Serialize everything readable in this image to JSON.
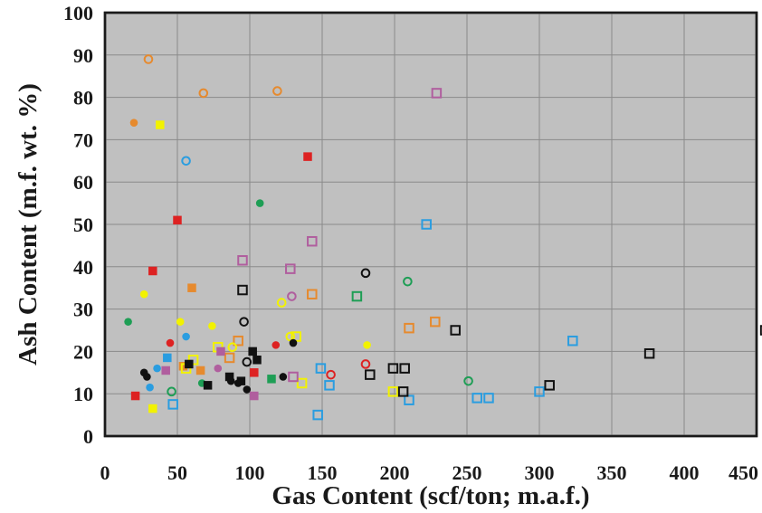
{
  "chart_data": {
    "type": "scatter",
    "title": "",
    "xlabel": "Gas Content (scf/ton; m.a.f.)",
    "ylabel": "Ash Content (m.f. wt. %)",
    "xlim": [
      0,
      450
    ],
    "ylim": [
      0,
      100
    ],
    "xticks": [
      0,
      50,
      100,
      150,
      200,
      250,
      300,
      350,
      400,
      450
    ],
    "yticks": [
      0,
      10,
      20,
      30,
      40,
      50,
      60,
      70,
      80,
      90,
      100
    ],
    "grid": true,
    "plot_background": "#c0c0c0",
    "legend": "none",
    "series": [
      {
        "color": "#e68a2e",
        "marker": "circle-open",
        "points": [
          [
            30,
            89
          ],
          [
            68,
            81
          ],
          [
            119,
            81.5
          ]
        ]
      },
      {
        "color": "#e68a2e",
        "marker": "circle-filled",
        "points": [
          [
            20,
            74
          ]
        ]
      },
      {
        "color": "#e68a2e",
        "marker": "square-open",
        "points": [
          [
            143,
            33.5
          ],
          [
            210,
            25.5
          ],
          [
            228,
            27
          ],
          [
            92,
            22.5
          ],
          [
            86,
            18.5
          ]
        ]
      },
      {
        "color": "#e68a2e",
        "marker": "square-filled",
        "points": [
          [
            60,
            35
          ],
          [
            54,
            16.5
          ],
          [
            66,
            15.5
          ]
        ]
      },
      {
        "color": "#f2f200",
        "marker": "square-filled",
        "points": [
          [
            38,
            73.5
          ],
          [
            33,
            6.5
          ]
        ]
      },
      {
        "color": "#f2f200",
        "marker": "circle-filled",
        "points": [
          [
            27,
            33.5
          ],
          [
            52,
            27
          ],
          [
            74,
            26
          ],
          [
            181,
            21.5
          ]
        ]
      },
      {
        "color": "#f2f200",
        "marker": "circle-open",
        "points": [
          [
            122,
            31.5
          ],
          [
            128,
            23.5
          ],
          [
            88,
            21
          ]
        ]
      },
      {
        "color": "#f2f200",
        "marker": "square-open",
        "points": [
          [
            132,
            23.5
          ],
          [
            78,
            21
          ],
          [
            61,
            18
          ],
          [
            56,
            16
          ],
          [
            136,
            12.5
          ],
          [
            199,
            10.5
          ]
        ]
      },
      {
        "color": "#2a9de0",
        "marker": "circle-open",
        "points": [
          [
            56,
            65
          ]
        ]
      },
      {
        "color": "#2a9de0",
        "marker": "circle-filled",
        "points": [
          [
            56,
            23.5
          ],
          [
            36,
            16
          ],
          [
            31,
            11.5
          ]
        ]
      },
      {
        "color": "#2a9de0",
        "marker": "square-filled",
        "points": [
          [
            43,
            18.5
          ]
        ]
      },
      {
        "color": "#2a9de0",
        "marker": "square-open",
        "points": [
          [
            222,
            50
          ],
          [
            323,
            22.5
          ],
          [
            149,
            16
          ],
          [
            155,
            12
          ],
          [
            47,
            7.5
          ],
          [
            147,
            5
          ],
          [
            210,
            8.5
          ],
          [
            257,
            9
          ],
          [
            265,
            9
          ],
          [
            300,
            10.5
          ]
        ]
      },
      {
        "color": "#b05e9e",
        "marker": "square-open",
        "points": [
          [
            229,
            81
          ],
          [
            143,
            46
          ],
          [
            95,
            41.5
          ],
          [
            128,
            39.5
          ],
          [
            130,
            14
          ]
        ]
      },
      {
        "color": "#b05e9e",
        "marker": "circle-open",
        "points": [
          [
            129,
            33
          ]
        ]
      },
      {
        "color": "#b05e9e",
        "marker": "square-filled",
        "points": [
          [
            80,
            20
          ],
          [
            42,
            15.5
          ],
          [
            103,
            9.5
          ]
        ]
      },
      {
        "color": "#b05e9e",
        "marker": "circle-filled",
        "points": [
          [
            78,
            16
          ]
        ]
      },
      {
        "color": "#dd2222",
        "marker": "square-filled",
        "points": [
          [
            140,
            66
          ],
          [
            50,
            51
          ],
          [
            33,
            39
          ],
          [
            21,
            9.5
          ],
          [
            103,
            15
          ]
        ]
      },
      {
        "color": "#dd2222",
        "marker": "circle-filled",
        "points": [
          [
            45,
            22
          ],
          [
            118,
            21.5
          ]
        ]
      },
      {
        "color": "#dd2222",
        "marker": "circle-open",
        "points": [
          [
            180,
            17
          ],
          [
            156,
            14.5
          ]
        ]
      },
      {
        "color": "#1e9e55",
        "marker": "circle-filled",
        "points": [
          [
            107,
            55
          ],
          [
            16,
            27
          ],
          [
            67,
            12.5
          ]
        ]
      },
      {
        "color": "#1e9e55",
        "marker": "circle-open",
        "points": [
          [
            209,
            36.5
          ],
          [
            251,
            13
          ],
          [
            46,
            10.5
          ]
        ]
      },
      {
        "color": "#1e9e55",
        "marker": "square-open",
        "points": [
          [
            174,
            33
          ]
        ]
      },
      {
        "color": "#1e9e55",
        "marker": "square-filled",
        "points": [
          [
            115,
            13.5
          ]
        ]
      },
      {
        "color": "#111111",
        "marker": "circle-open",
        "points": [
          [
            180,
            38.5
          ],
          [
            96,
            27
          ],
          [
            98,
            17.5
          ]
        ]
      },
      {
        "color": "#111111",
        "marker": "circle-filled",
        "points": [
          [
            130,
            22
          ],
          [
            27,
            15
          ],
          [
            29,
            14
          ],
          [
            123,
            14
          ],
          [
            87,
            13
          ],
          [
            92,
            12.5
          ],
          [
            98,
            11
          ]
        ]
      },
      {
        "color": "#111111",
        "marker": "square-filled",
        "points": [
          [
            102,
            20
          ],
          [
            105,
            18
          ],
          [
            58,
            17
          ],
          [
            86,
            14
          ],
          [
            94,
            13
          ],
          [
            71,
            12
          ]
        ]
      },
      {
        "color": "#111111",
        "marker": "square-open",
        "points": [
          [
            95,
            34.5
          ],
          [
            242,
            25
          ],
          [
            456,
            25
          ],
          [
            376,
            19.5
          ],
          [
            183,
            14.5
          ],
          [
            199,
            16
          ],
          [
            207,
            16
          ],
          [
            206,
            10.5
          ],
          [
            307,
            12
          ]
        ]
      }
    ]
  }
}
